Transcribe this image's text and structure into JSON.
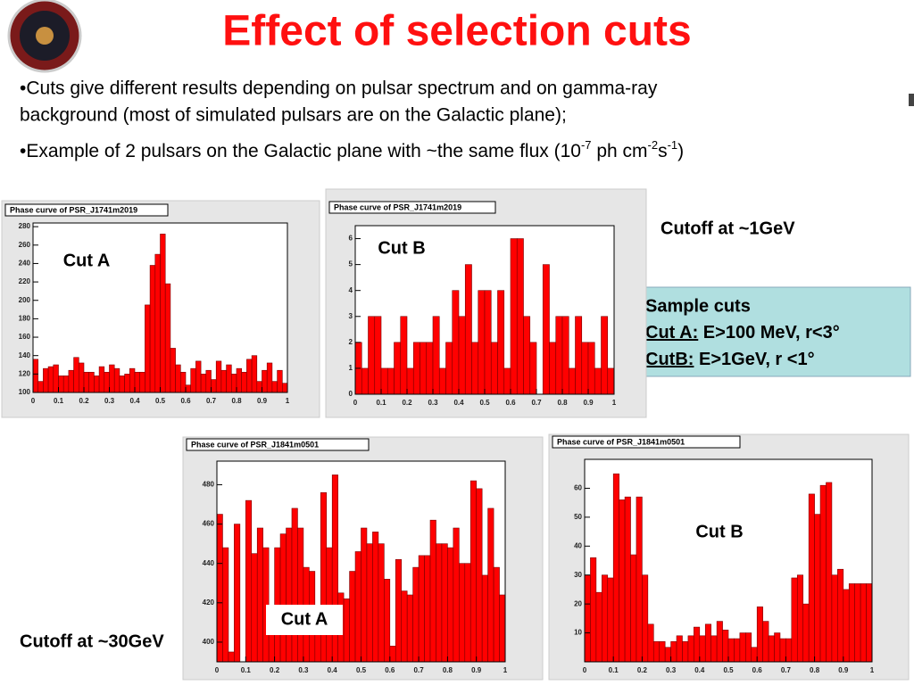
{
  "slide": {
    "title": "Effect of selection cuts",
    "bullet1_line1": "•Cuts give different results depending on pulsar spectrum and on gamma-ray",
    "bullet1_line2": "background (most of simulated pulsars are on the Galactic plane);",
    "bullet2": [
      "•Example of 2 pulsars on the Galactic plane with ~the same flux (10",
      "-7",
      " ph cm",
      "-2",
      "s",
      "-1",
      ")"
    ],
    "cutoff_top": "Cutoff at ~1GeV",
    "cutoff_bottom": "Cutoff at ~30GeV",
    "cuts_box": {
      "title": "Sample cuts",
      "a_name": "Cut A:",
      "a_text": " E>100 MeV, r<3°",
      "b_name": "CutB:",
      "b_text": " E>1GeV, r <1°"
    }
  },
  "chart_data": [
    {
      "type": "histogram",
      "title": "Phase curve of PSR_J1741m2019",
      "annotation": "Cut A",
      "color": "#ff0000",
      "bins": [
        0,
        0.02,
        0.04,
        0.06,
        0.08,
        0.1,
        0.12,
        0.14,
        0.16,
        0.18,
        0.2,
        0.22,
        0.24,
        0.26,
        0.28,
        0.3,
        0.32,
        0.34,
        0.36,
        0.38,
        0.4,
        0.42,
        0.44,
        0.46,
        0.48,
        0.5,
        0.52,
        0.54,
        0.56,
        0.58,
        0.6,
        0.62,
        0.64,
        0.66,
        0.68,
        0.7,
        0.72,
        0.74,
        0.76,
        0.78,
        0.8,
        0.82,
        0.84,
        0.86,
        0.88,
        0.9,
        0.92,
        0.94,
        0.96,
        0.98,
        1
      ],
      "values": [
        136,
        112,
        126,
        128,
        130,
        118,
        118,
        124,
        138,
        132,
        122,
        122,
        118,
        128,
        122,
        130,
        126,
        118,
        120,
        126,
        122,
        122,
        195,
        238,
        250,
        272,
        218,
        148,
        130,
        122,
        108,
        126,
        134,
        120,
        124,
        114,
        134,
        124,
        130,
        120,
        126,
        122,
        136,
        140,
        112,
        124,
        132,
        112,
        124,
        110
      ],
      "xlim": [
        0,
        1
      ],
      "xticks": [
        0,
        0.1,
        0.2,
        0.3,
        0.4,
        0.5,
        0.6,
        0.7,
        0.8,
        0.9,
        1
      ],
      "ylim": [
        100,
        284
      ],
      "yticks": [
        100,
        120,
        140,
        160,
        180,
        200,
        220,
        240,
        260,
        280
      ]
    },
    {
      "type": "histogram",
      "title": "Phase curve of PSR_J1741m2019",
      "annotation": "Cut B",
      "color": "#ff0000",
      "bins": [
        0,
        0.025,
        0.05,
        0.075,
        0.1,
        0.125,
        0.15,
        0.175,
        0.2,
        0.225,
        0.25,
        0.275,
        0.3,
        0.325,
        0.35,
        0.375,
        0.4,
        0.425,
        0.45,
        0.475,
        0.5,
        0.525,
        0.55,
        0.575,
        0.6,
        0.625,
        0.65,
        0.675,
        0.7,
        0.725,
        0.75,
        0.775,
        0.8,
        0.825,
        0.85,
        0.875,
        0.9,
        0.925,
        0.95,
        0.975,
        1
      ],
      "values": [
        2,
        1,
        3,
        3,
        1,
        1,
        2,
        3,
        1,
        2,
        2,
        2,
        3,
        1,
        2,
        4,
        3,
        5,
        2,
        4,
        4,
        2,
        4,
        1,
        6,
        6,
        3,
        2,
        0,
        5,
        2,
        3,
        3,
        1,
        3,
        2,
        2,
        1,
        3,
        1
      ],
      "xlim": [
        0,
        1
      ],
      "xticks": [
        0,
        0.1,
        0.2,
        0.3,
        0.4,
        0.5,
        0.6,
        0.7,
        0.8,
        0.9,
        1
      ],
      "ylim": [
        0,
        6.5
      ],
      "yticks": [
        0,
        1,
        2,
        3,
        4,
        5,
        6
      ]
    },
    {
      "type": "histogram",
      "title": "Phase curve of PSR_J1841m0501",
      "annotation": "Cut A",
      "color": "#ff0000",
      "bins": [
        0,
        0.02,
        0.04,
        0.06,
        0.08,
        0.1,
        0.12,
        0.14,
        0.16,
        0.18,
        0.2,
        0.22,
        0.24,
        0.26,
        0.28,
        0.3,
        0.32,
        0.34,
        0.36,
        0.38,
        0.4,
        0.42,
        0.44,
        0.46,
        0.48,
        0.5,
        0.52,
        0.54,
        0.56,
        0.58,
        0.6,
        0.62,
        0.64,
        0.66,
        0.68,
        0.7,
        0.72,
        0.74,
        0.76,
        0.78,
        0.8,
        0.82,
        0.84,
        0.86,
        0.88,
        0.9,
        0.92,
        0.94,
        0.96,
        0.98,
        1
      ],
      "values": [
        465,
        448,
        395,
        460,
        390,
        472,
        445,
        458,
        448,
        415,
        448,
        455,
        458,
        468,
        458,
        438,
        436,
        414,
        476,
        448,
        485,
        425,
        422,
        436,
        446,
        458,
        450,
        456,
        450,
        432,
        398,
        442,
        426,
        424,
        438,
        444,
        444,
        462,
        450,
        450,
        448,
        458,
        440,
        440,
        482,
        478,
        434,
        468,
        438,
        424
      ],
      "xlim": [
        0,
        1
      ],
      "xticks": [
        0,
        0.1,
        0.2,
        0.3,
        0.4,
        0.5,
        0.6,
        0.7,
        0.8,
        0.9,
        1
      ],
      "ylim": [
        390,
        492
      ],
      "yticks": [
        400,
        420,
        440,
        460,
        480
      ]
    },
    {
      "type": "histogram",
      "title": "Phase curve of PSR_J1841m0501",
      "annotation": "Cut B",
      "color": "#ff0000",
      "bins": [
        0,
        0.02,
        0.04,
        0.06,
        0.08,
        0.1,
        0.12,
        0.14,
        0.16,
        0.18,
        0.2,
        0.22,
        0.24,
        0.26,
        0.28,
        0.3,
        0.32,
        0.34,
        0.36,
        0.38,
        0.4,
        0.42,
        0.44,
        0.46,
        0.48,
        0.5,
        0.52,
        0.54,
        0.56,
        0.58,
        0.6,
        0.62,
        0.64,
        0.66,
        0.68,
        0.7,
        0.72,
        0.74,
        0.76,
        0.78,
        0.8,
        0.82,
        0.84,
        0.86,
        0.88,
        0.9,
        0.92,
        0.94,
        0.96,
        0.98,
        1
      ],
      "values": [
        30,
        36,
        24,
        30,
        29,
        65,
        56,
        57,
        37,
        57,
        30,
        13,
        7,
        7,
        5,
        7,
        9,
        7,
        9,
        12,
        9,
        13,
        9,
        14,
        11,
        8,
        8,
        10,
        10,
        5,
        19,
        14,
        9,
        10,
        8,
        8,
        29,
        30,
        20,
        58,
        51,
        61,
        62,
        30,
        32,
        25,
        27,
        27,
        27,
        27
      ],
      "xlim": [
        0,
        1
      ],
      "xticks": [
        0,
        0.1,
        0.2,
        0.3,
        0.4,
        0.5,
        0.6,
        0.7,
        0.8,
        0.9,
        1
      ],
      "ylim": [
        0,
        70
      ],
      "yticks": [
        10,
        20,
        30,
        40,
        50,
        60
      ]
    }
  ]
}
